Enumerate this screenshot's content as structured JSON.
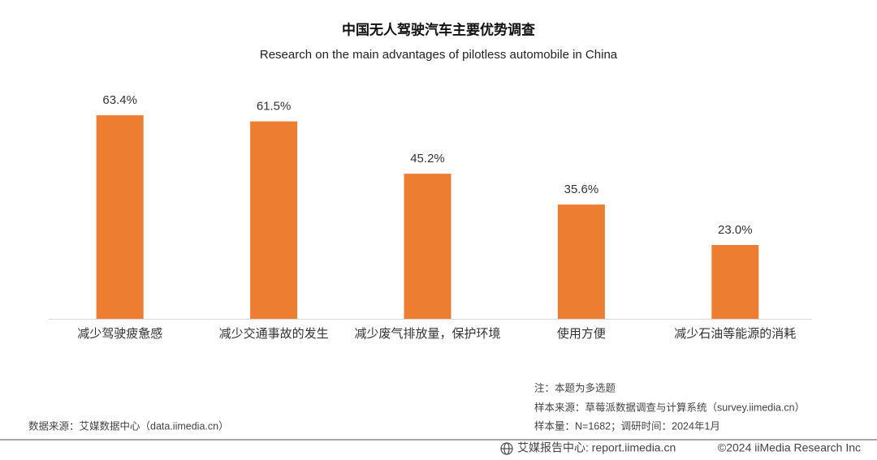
{
  "chart_data": {
    "type": "bar",
    "title": "中国无人驾驶汽车主要优势调查",
    "subtitle": "Research on the main advantages of pilotless automobile in China",
    "categories": [
      "减少驾驶疲惫感",
      "减少交通事故的发生",
      "减少废气排放量，保护环境",
      "使用方便",
      "减少石油等能源的消耗"
    ],
    "values": [
      63.4,
      61.5,
      45.2,
      35.6,
      23.0
    ],
    "value_labels": [
      "63.4%",
      "61.5%",
      "45.2%",
      "35.6%",
      "23.0%"
    ],
    "color": "#ed7d31",
    "ylim": [
      0,
      70
    ]
  },
  "notes": [
    "注：本题为多选题",
    "样本来源：草莓派数据调查与计算系统（survey.iimedia.cn）",
    "样本量：N=1682；调研时间：2024年1月"
  ],
  "source": "数据来源：艾媒数据中心（data.iimedia.cn）",
  "footer": {
    "site": "艾媒报告中心: report.iimedia.cn",
    "copyright": "©2024  iiMedia Research  Inc"
  }
}
